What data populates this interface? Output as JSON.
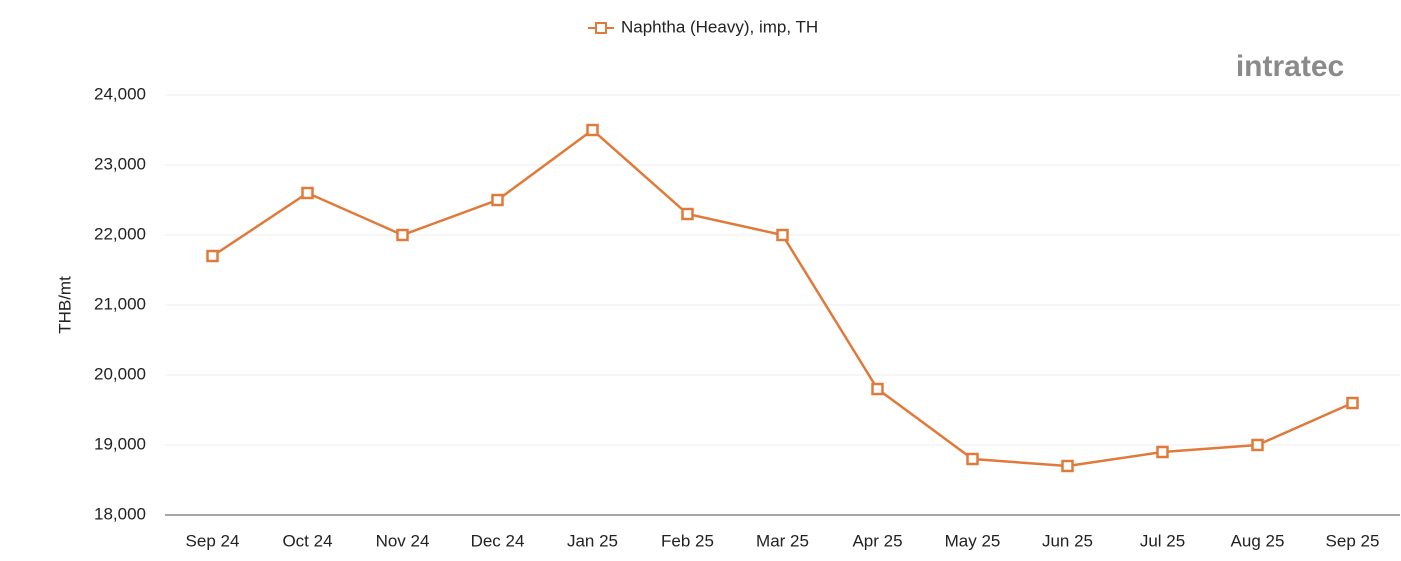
{
  "chart_data": {
    "type": "line",
    "y_label": "THB/mt",
    "categories": [
      "Sep 24",
      "Oct 24",
      "Nov 24",
      "Dec 24",
      "Jan 25",
      "Feb 25",
      "Mar 25",
      "Apr 25",
      "May 25",
      "Jun 25",
      "Jul 25",
      "Aug 25",
      "Sep 25"
    ],
    "series": [
      {
        "name": "Naphtha (Heavy), imp, TH",
        "color": "#e07a3a",
        "values": [
          21700,
          22600,
          22000,
          22500,
          23500,
          22300,
          22000,
          19800,
          18800,
          18700,
          18900,
          19000,
          19600
        ]
      }
    ],
    "ylim": [
      18000,
      24000
    ],
    "yticks": [
      {
        "value": 18000,
        "label": "18,000"
      },
      {
        "value": 19000,
        "label": "19,000"
      },
      {
        "value": 20000,
        "label": "20,000"
      },
      {
        "value": 21000,
        "label": "21,000"
      },
      {
        "value": 22000,
        "label": "22,000"
      },
      {
        "value": 23000,
        "label": "23,000"
      },
      {
        "value": 24000,
        "label": "24,000"
      }
    ],
    "grid": true,
    "legend": "top"
  },
  "logo": "intratec"
}
